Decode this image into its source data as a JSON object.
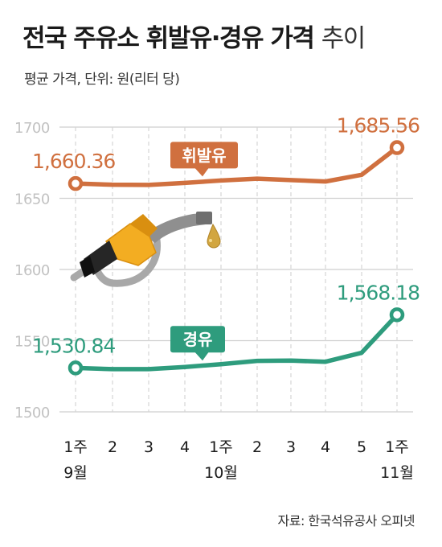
{
  "header": {
    "title_bold": "전국 주유소 휘발유·경유 가격",
    "title_light": "추이",
    "subtitle": "평균 가격, 단위: 원(리터 당)"
  },
  "source": "자료: 한국석유공사 오피넷",
  "chart_data": {
    "type": "line",
    "categories": [
      "1주",
      "2",
      "3",
      "4",
      "1주",
      "2",
      "3",
      "4",
      "5",
      "1주"
    ],
    "month_labels": [
      {
        "index": 0,
        "label": "9월"
      },
      {
        "index": 4,
        "label": "10월"
      },
      {
        "index": 9,
        "label": "11월"
      }
    ],
    "ylim": [
      1500,
      1700
    ],
    "yticks": [
      1500,
      1550,
      1600,
      1650,
      1700
    ],
    "grid": true,
    "series": [
      {
        "name": "휘발유",
        "color": "#d0703f",
        "values": [
          1660.36,
          1659.5,
          1659.4,
          1660.8,
          1662.5,
          1663.8,
          1662.8,
          1661.8,
          1666.5,
          1685.56
        ],
        "first_label": "1,660.36",
        "last_label": "1,685.56"
      },
      {
        "name": "경유",
        "color": "#2e9c7d",
        "values": [
          1530.84,
          1530.0,
          1530.0,
          1531.5,
          1533.5,
          1535.8,
          1536.0,
          1535.2,
          1541.5,
          1568.18
        ],
        "first_label": "1,530.84",
        "last_label": "1,568.18"
      }
    ]
  }
}
